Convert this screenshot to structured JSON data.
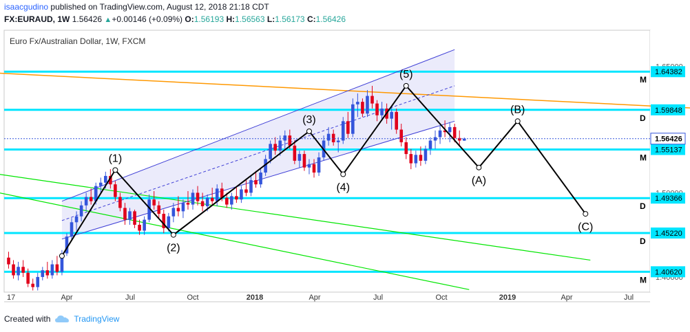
{
  "header": {
    "username": "isaacgudino",
    "published_text": "published on TradingView.com, August 12, 2018 21:18 CDT",
    "symbol": "FX:EURAUD, 1W",
    "last": "1.56426",
    "change": "+0.00146 (+0.09%)",
    "o_label": "O:",
    "o": "1.56193",
    "h_label": "H:",
    "h": "1.56563",
    "l_label": "L:",
    "l": "1.56173",
    "c_label": "C:",
    "c": "1.56426"
  },
  "footer": {
    "created_with": "Created with",
    "brand": "TradingView"
  },
  "colors": {
    "up": "#3455db",
    "down": "#e0001b",
    "hline": "#00e5ff",
    "channel": "#3f3fd6",
    "channel_fill": "#e8e8fa",
    "trend": "#ff9800",
    "green": "#00e600",
    "wave": "#000000",
    "price_line": "#3455db"
  },
  "chart_data": {
    "type": "candlestick",
    "title": "Euro Fx/Australian Dollar, 1W, FXCM",
    "y_axis_ticks": [
      "1.65000",
      "1.50000",
      "1.40000"
    ],
    "x_axis_ticks": [
      "17",
      "Apr",
      "Jul",
      "Oct",
      "2018",
      "Apr",
      "Jul",
      "Oct",
      "2019",
      "Apr",
      "Jul"
    ],
    "ylim": [
      1.382,
      1.693
    ],
    "current_price": {
      "value": 1.56426,
      "label": "1.56426"
    },
    "horizontal_levels": [
      {
        "value": 1.64382,
        "label": "1.64382",
        "tag": "M"
      },
      {
        "value": 1.59848,
        "label": "1.59848",
        "tag": "D"
      },
      {
        "value": 1.55137,
        "label": "1.55137",
        "tag": "M"
      },
      {
        "value": 1.49366,
        "label": "1.49366",
        "tag": "D"
      },
      {
        "value": 1.4522,
        "label": "1.45220",
        "tag": "D"
      },
      {
        "value": 1.4062,
        "label": "1.40620",
        "tag": "M"
      }
    ],
    "wave_labels": [
      {
        "label": "(1)",
        "week": 22,
        "price": 1.527,
        "pos": "above"
      },
      {
        "label": "(2)",
        "week": 34,
        "price": 1.45,
        "pos": "below"
      },
      {
        "label": "(3)",
        "week": 62,
        "price": 1.573,
        "pos": "above"
      },
      {
        "label": "(4)",
        "week": 69,
        "price": 1.522,
        "pos": "below"
      },
      {
        "label": "(5)",
        "week": 82,
        "price": 1.627,
        "pos": "above"
      },
      {
        "label": "(A)",
        "week": 97,
        "price": 1.53,
        "pos": "below"
      },
      {
        "label": "(B)",
        "week": 105,
        "price": 1.585,
        "pos": "above"
      },
      {
        "label": "(C)",
        "week": 119,
        "price": 1.475,
        "pos": "below"
      }
    ],
    "wave_path": [
      [
        11,
        1.425
      ],
      [
        22,
        1.527
      ],
      [
        34,
        1.45
      ],
      [
        62,
        1.573
      ],
      [
        69,
        1.522
      ],
      [
        82,
        1.627
      ],
      [
        97,
        1.53
      ],
      [
        105,
        1.585
      ],
      [
        119,
        1.475
      ]
    ],
    "channel": {
      "lower": [
        [
          11,
          1.445
        ],
        [
          92,
          1.585
        ]
      ],
      "upper": [
        [
          11,
          1.49
        ],
        [
          92,
          1.67
        ]
      ],
      "mid": [
        [
          11,
          1.467
        ],
        [
          92,
          1.627
        ]
      ]
    },
    "trend_line": [
      [
        -2,
        1.642
      ],
      [
        150,
        1.598
      ]
    ],
    "green_lines": [
      [
        [
          -2,
          1.522
        ],
        [
          120,
          1.42
        ]
      ],
      [
        [
          -2,
          1.5
        ],
        [
          95,
          1.385
        ]
      ]
    ],
    "candles": [
      {
        "o": 1.423,
        "h": 1.43,
        "l": 1.41,
        "c": 1.415
      },
      {
        "o": 1.415,
        "h": 1.42,
        "l": 1.398,
        "c": 1.402
      },
      {
        "o": 1.402,
        "h": 1.418,
        "l": 1.396,
        "c": 1.412
      },
      {
        "o": 1.412,
        "h": 1.42,
        "l": 1.4,
        "c": 1.405
      },
      {
        "o": 1.405,
        "h": 1.41,
        "l": 1.388,
        "c": 1.392
      },
      {
        "o": 1.392,
        "h": 1.398,
        "l": 1.384,
        "c": 1.388
      },
      {
        "o": 1.388,
        "h": 1.405,
        "l": 1.384,
        "c": 1.4
      },
      {
        "o": 1.4,
        "h": 1.412,
        "l": 1.396,
        "c": 1.408
      },
      {
        "o": 1.408,
        "h": 1.418,
        "l": 1.398,
        "c": 1.402
      },
      {
        "o": 1.402,
        "h": 1.42,
        "l": 1.398,
        "c": 1.415
      },
      {
        "o": 1.415,
        "h": 1.425,
        "l": 1.402,
        "c": 1.406
      },
      {
        "o": 1.406,
        "h": 1.432,
        "l": 1.402,
        "c": 1.428
      },
      {
        "o": 1.428,
        "h": 1.452,
        "l": 1.425,
        "c": 1.448
      },
      {
        "o": 1.448,
        "h": 1.47,
        "l": 1.444,
        "c": 1.465
      },
      {
        "o": 1.465,
        "h": 1.478,
        "l": 1.455,
        "c": 1.472
      },
      {
        "o": 1.472,
        "h": 1.49,
        "l": 1.466,
        "c": 1.485
      },
      {
        "o": 1.485,
        "h": 1.5,
        "l": 1.478,
        "c": 1.495
      },
      {
        "o": 1.495,
        "h": 1.505,
        "l": 1.486,
        "c": 1.49
      },
      {
        "o": 1.49,
        "h": 1.512,
        "l": 1.486,
        "c": 1.508
      },
      {
        "o": 1.508,
        "h": 1.518,
        "l": 1.5,
        "c": 1.512
      },
      {
        "o": 1.512,
        "h": 1.525,
        "l": 1.505,
        "c": 1.52
      },
      {
        "o": 1.52,
        "h": 1.528,
        "l": 1.505,
        "c": 1.51
      },
      {
        "o": 1.51,
        "h": 1.514,
        "l": 1.49,
        "c": 1.495
      },
      {
        "o": 1.495,
        "h": 1.5,
        "l": 1.478,
        "c": 1.482
      },
      {
        "o": 1.482,
        "h": 1.488,
        "l": 1.462,
        "c": 1.468
      },
      {
        "o": 1.468,
        "h": 1.482,
        "l": 1.462,
        "c": 1.478
      },
      {
        "o": 1.478,
        "h": 1.48,
        "l": 1.458,
        "c": 1.462
      },
      {
        "o": 1.462,
        "h": 1.468,
        "l": 1.45,
        "c": 1.455
      },
      {
        "o": 1.455,
        "h": 1.472,
        "l": 1.45,
        "c": 1.468
      },
      {
        "o": 1.468,
        "h": 1.498,
        "l": 1.465,
        "c": 1.492
      },
      {
        "o": 1.492,
        "h": 1.502,
        "l": 1.48,
        "c": 1.485
      },
      {
        "o": 1.485,
        "h": 1.49,
        "l": 1.47,
        "c": 1.475
      },
      {
        "o": 1.475,
        "h": 1.48,
        "l": 1.452,
        "c": 1.458
      },
      {
        "o": 1.458,
        "h": 1.476,
        "l": 1.454,
        "c": 1.472
      },
      {
        "o": 1.472,
        "h": 1.488,
        "l": 1.465,
        "c": 1.482
      },
      {
        "o": 1.482,
        "h": 1.496,
        "l": 1.472,
        "c": 1.478
      },
      {
        "o": 1.478,
        "h": 1.492,
        "l": 1.47,
        "c": 1.488
      },
      {
        "o": 1.488,
        "h": 1.502,
        "l": 1.48,
        "c": 1.486
      },
      {
        "o": 1.486,
        "h": 1.504,
        "l": 1.48,
        "c": 1.5
      },
      {
        "o": 1.5,
        "h": 1.508,
        "l": 1.485,
        "c": 1.49
      },
      {
        "o": 1.49,
        "h": 1.5,
        "l": 1.478,
        "c": 1.484
      },
      {
        "o": 1.484,
        "h": 1.498,
        "l": 1.478,
        "c": 1.494
      },
      {
        "o": 1.494,
        "h": 1.506,
        "l": 1.486,
        "c": 1.49
      },
      {
        "o": 1.49,
        "h": 1.51,
        "l": 1.484,
        "c": 1.505
      },
      {
        "o": 1.505,
        "h": 1.512,
        "l": 1.49,
        "c": 1.494
      },
      {
        "o": 1.494,
        "h": 1.5,
        "l": 1.482,
        "c": 1.486
      },
      {
        "o": 1.486,
        "h": 1.5,
        "l": 1.48,
        "c": 1.496
      },
      {
        "o": 1.496,
        "h": 1.506,
        "l": 1.488,
        "c": 1.492
      },
      {
        "o": 1.492,
        "h": 1.508,
        "l": 1.488,
        "c": 1.504
      },
      {
        "o": 1.504,
        "h": 1.515,
        "l": 1.496,
        "c": 1.5
      },
      {
        "o": 1.5,
        "h": 1.52,
        "l": 1.496,
        "c": 1.515
      },
      {
        "o": 1.515,
        "h": 1.526,
        "l": 1.506,
        "c": 1.51
      },
      {
        "o": 1.51,
        "h": 1.528,
        "l": 1.506,
        "c": 1.524
      },
      {
        "o": 1.524,
        "h": 1.545,
        "l": 1.52,
        "c": 1.54
      },
      {
        "o": 1.54,
        "h": 1.562,
        "l": 1.535,
        "c": 1.558
      },
      {
        "o": 1.558,
        "h": 1.566,
        "l": 1.545,
        "c": 1.55
      },
      {
        "o": 1.55,
        "h": 1.568,
        "l": 1.544,
        "c": 1.562
      },
      {
        "o": 1.562,
        "h": 1.574,
        "l": 1.552,
        "c": 1.568
      },
      {
        "o": 1.568,
        "h": 1.575,
        "l": 1.552,
        "c": 1.556
      },
      {
        "o": 1.556,
        "h": 1.562,
        "l": 1.534,
        "c": 1.538
      },
      {
        "o": 1.538,
        "h": 1.55,
        "l": 1.53,
        "c": 1.546
      },
      {
        "o": 1.546,
        "h": 1.55,
        "l": 1.526,
        "c": 1.53
      },
      {
        "o": 1.53,
        "h": 1.54,
        "l": 1.522,
        "c": 1.534
      },
      {
        "o": 1.534,
        "h": 1.54,
        "l": 1.518,
        "c": 1.524
      },
      {
        "o": 1.524,
        "h": 1.548,
        "l": 1.52,
        "c": 1.542
      },
      {
        "o": 1.542,
        "h": 1.568,
        "l": 1.538,
        "c": 1.562
      },
      {
        "o": 1.562,
        "h": 1.578,
        "l": 1.556,
        "c": 1.57
      },
      {
        "o": 1.57,
        "h": 1.575,
        "l": 1.556,
        "c": 1.56
      },
      {
        "o": 1.56,
        "h": 1.566,
        "l": 1.548,
        "c": 1.562
      },
      {
        "o": 1.562,
        "h": 1.59,
        "l": 1.558,
        "c": 1.585
      },
      {
        "o": 1.585,
        "h": 1.596,
        "l": 1.565,
        "c": 1.57
      },
      {
        "o": 1.57,
        "h": 1.612,
        "l": 1.566,
        "c": 1.605
      },
      {
        "o": 1.605,
        "h": 1.618,
        "l": 1.59,
        "c": 1.608
      },
      {
        "o": 1.608,
        "h": 1.612,
        "l": 1.59,
        "c": 1.594
      },
      {
        "o": 1.594,
        "h": 1.622,
        "l": 1.59,
        "c": 1.615
      },
      {
        "o": 1.615,
        "h": 1.627,
        "l": 1.6,
        "c": 1.606
      },
      {
        "o": 1.606,
        "h": 1.61,
        "l": 1.585,
        "c": 1.592
      },
      {
        "o": 1.592,
        "h": 1.608,
        "l": 1.586,
        "c": 1.6
      },
      {
        "o": 1.6,
        "h": 1.606,
        "l": 1.582,
        "c": 1.588
      },
      {
        "o": 1.588,
        "h": 1.602,
        "l": 1.575,
        "c": 1.596
      },
      {
        "o": 1.596,
        "h": 1.6,
        "l": 1.57,
        "c": 1.575
      },
      {
        "o": 1.575,
        "h": 1.582,
        "l": 1.555,
        "c": 1.56
      },
      {
        "o": 1.56,
        "h": 1.566,
        "l": 1.54,
        "c": 1.546
      },
      {
        "o": 1.546,
        "h": 1.552,
        "l": 1.528,
        "c": 1.535
      },
      {
        "o": 1.535,
        "h": 1.55,
        "l": 1.53,
        "c": 1.545
      },
      {
        "o": 1.545,
        "h": 1.555,
        "l": 1.532,
        "c": 1.538
      },
      {
        "o": 1.538,
        "h": 1.556,
        "l": 1.534,
        "c": 1.552
      },
      {
        "o": 1.552,
        "h": 1.566,
        "l": 1.545,
        "c": 1.562
      },
      {
        "o": 1.562,
        "h": 1.574,
        "l": 1.552,
        "c": 1.566
      },
      {
        "o": 1.566,
        "h": 1.58,
        "l": 1.558,
        "c": 1.574
      },
      {
        "o": 1.574,
        "h": 1.586,
        "l": 1.566,
        "c": 1.572
      },
      {
        "o": 1.572,
        "h": 1.584,
        "l": 1.56,
        "c": 1.578
      },
      {
        "o": 1.578,
        "h": 1.582,
        "l": 1.56,
        "c": 1.565
      },
      {
        "o": 1.565,
        "h": 1.574,
        "l": 1.556,
        "c": 1.562
      },
      {
        "o": 1.5619,
        "h": 1.5656,
        "l": 1.5617,
        "c": 1.5643
      }
    ]
  }
}
